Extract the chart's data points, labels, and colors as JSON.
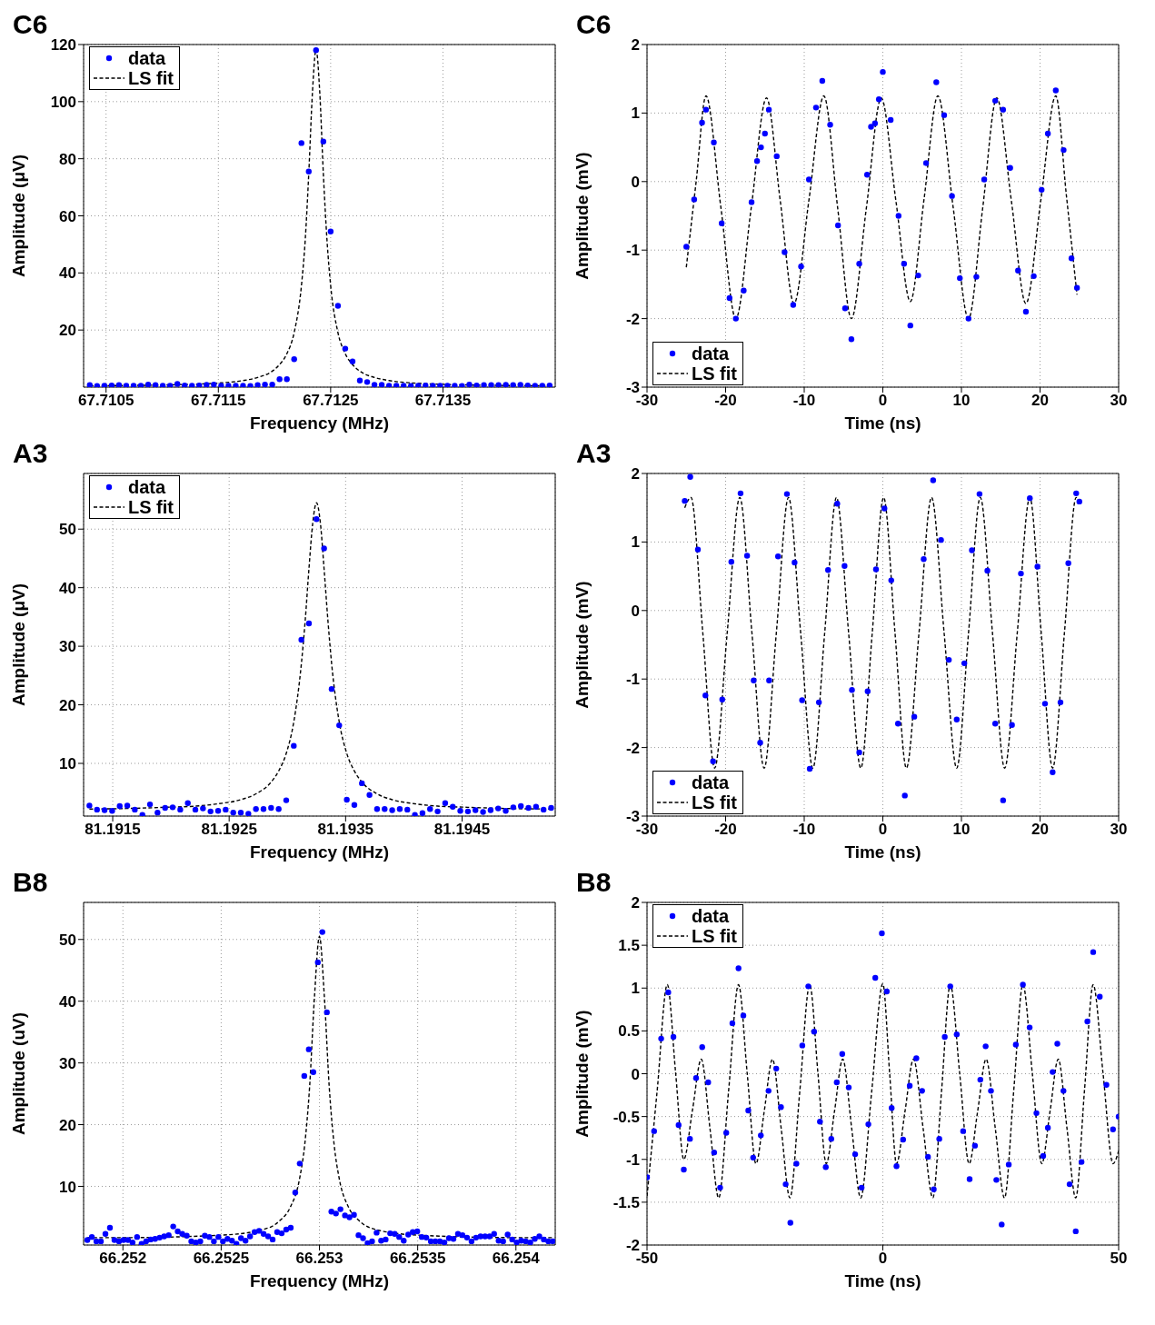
{
  "chart_data": [
    {
      "type": "scatter",
      "title": "C6",
      "xlabel": "Frequency (MHz)",
      "ylabel": "Amplitude (μV)",
      "xlim": [
        67.7103,
        67.7145
      ],
      "xticks": [
        67.7105,
        67.7115,
        67.7125,
        67.7135
      ],
      "ylim": [
        0,
        120
      ],
      "yticks": [
        20,
        40,
        60,
        80,
        100,
        120
      ],
      "grid": true,
      "legend": "top left",
      "series": [
        {
          "name": "data",
          "color": "#0000ff",
          "marker": "circle",
          "x": [
            67.710355,
            67.71042,
            67.710485,
            67.71055,
            67.710615,
            67.71068,
            67.710745,
            67.71081,
            67.710875,
            67.71094,
            67.711005,
            67.71107,
            67.711135,
            67.7112,
            67.711265,
            67.71133,
            67.711395,
            67.71146,
            67.711525,
            67.71159,
            67.711655,
            67.71172,
            67.711785,
            67.71185,
            67.711915,
            67.71198,
            67.712045,
            67.71211,
            67.712175,
            67.71224,
            67.712305,
            67.71237,
            67.712435,
            67.7125,
            67.712565,
            67.71263,
            67.712695,
            67.71276,
            67.712825,
            67.71289,
            67.712955,
            67.71302,
            67.713085,
            67.71315,
            67.713215,
            67.71328,
            67.713345,
            67.71341,
            67.713475,
            67.71354,
            67.713605,
            67.71367,
            67.713735,
            67.7138,
            67.713865,
            67.71393,
            67.713995,
            67.71406,
            67.714125,
            67.71419,
            67.714255,
            67.71432,
            67.714385,
            67.71445
          ],
          "values": [
            0.7,
            0.4,
            0.5,
            0.6,
            0.7,
            0.5,
            0.5,
            0.5,
            0.9,
            0.7,
            0.5,
            0.5,
            1.1,
            0.6,
            0.5,
            0.6,
            0.8,
            0.9,
            0.5,
            0.5,
            0.5,
            0.5,
            0.4,
            0.7,
            0.9,
            0.9,
            2.8,
            2.8,
            9.8,
            85.5,
            75.5,
            118,
            86,
            54.5,
            28.5,
            13.5,
            9,
            2.3,
            1.8,
            0.8,
            0.8,
            0.5,
            0.5,
            0.5,
            0.4,
            0.5,
            0.6,
            0.5,
            0.5,
            0.5,
            0.5,
            0.4,
            0.9,
            0.6,
            0.7,
            0.7,
            0.7,
            0.8,
            0.7,
            0.8,
            0.6,
            0.5,
            0.5,
            0.6
          ]
        },
        {
          "name": "LS fit",
          "type": "line",
          "color": "#000000",
          "marker": "none",
          "line_style": "dashed",
          "x": [
            67.710355,
            67.710745,
            67.71107,
            67.71133,
            67.711525,
            67.71172,
            67.71185,
            67.71198,
            67.712045,
            67.71211,
            67.712175,
            67.71224,
            67.712273,
            67.712305,
            67.712338,
            67.71237,
            67.712403,
            67.712435,
            67.712468,
            67.7125,
            67.712565,
            67.71263,
            67.712695,
            67.71276,
            67.71289,
            67.71302,
            67.713215,
            67.71341,
            67.71367,
            67.713995,
            67.71445
          ],
          "values": [
            0.5,
            0.6,
            0.8,
            1.1,
            1.5,
            2.3,
            3.4,
            5.6,
            7.9,
            11.7,
            19.1,
            35.6,
            51.2,
            74.7,
            103.3,
            118.3,
            103.3,
            74.7,
            51.2,
            35.6,
            19.1,
            11.7,
            7.9,
            5.6,
            3.4,
            2.3,
            1.5,
            1.1,
            0.8,
            0.6,
            0.5
          ]
        }
      ]
    },
    {
      "type": "scatter",
      "title": "C6",
      "xlabel": "Time (ns)",
      "ylabel": "Amplitude (mV)",
      "xlim": [
        -30,
        30
      ],
      "xticks": [
        -30,
        -20,
        -10,
        0,
        10,
        20,
        30
      ],
      "ylim": [
        -3,
        2
      ],
      "yticks": [
        -3,
        -2,
        -1,
        0,
        1,
        2
      ],
      "grid": true,
      "legend": "bottom left",
      "series": [
        {
          "name": "data",
          "color": "#0000ff",
          "marker": "circle",
          "x": [
            -25,
            -24,
            -23,
            -22.5,
            -21.5,
            -20.5,
            -19.5,
            -18.7,
            -17.7,
            -16.7,
            -16,
            -15.5,
            -15,
            -14.5,
            -13.5,
            -12.5,
            -11.4,
            -10.4,
            -9.4,
            -8.5,
            -7.7,
            -6.7,
            -5.7,
            -4.8,
            -4,
            -3,
            -2,
            -1.5,
            -1,
            -0.5,
            0,
            1,
            2,
            2.7,
            3.5,
            4.5,
            5.5,
            6.8,
            7.8,
            8.8,
            9.8,
            10.9,
            11.9,
            12.9,
            14.3,
            15.3,
            16.2,
            17.2,
            18.2,
            19.2,
            20.2,
            21,
            22,
            23,
            24,
            24.7
          ],
          "values": [
            -0.95,
            -0.26,
            0.86,
            1.05,
            0.57,
            -0.61,
            -1.7,
            -2.0,
            -1.59,
            -0.3,
            0.3,
            0.5,
            0.7,
            1.05,
            0.37,
            -1.03,
            -1.8,
            -1.24,
            0.03,
            1.08,
            1.47,
            0.83,
            -0.64,
            -1.85,
            -2.3,
            -1.2,
            0.1,
            0.8,
            0.85,
            1.2,
            1.6,
            0.9,
            -0.5,
            -1.2,
            -2.1,
            -1.37,
            0.27,
            1.45,
            0.97,
            -0.21,
            -1.41,
            -2.0,
            -1.39,
            0.03,
            1.18,
            1.05,
            0.2,
            -1.3,
            -1.9,
            -1.38,
            -0.12,
            0.7,
            1.33,
            0.46,
            -1.12,
            -1.55
          ]
        },
        {
          "name": "LS fit",
          "type": "line",
          "color": "#000000",
          "marker": "none",
          "line_style": "dashed",
          "x": [
            -25,
            -23.75,
            -22.5,
            -20.6,
            -18.7,
            -16.75,
            -14.8,
            -13.05,
            -11.3,
            -9.4,
            -7.5,
            -5.75,
            -4,
            -2.1,
            -0.2,
            1.65,
            3.5,
            5.25,
            7,
            8.95,
            10.9,
            12.7,
            14.5,
            16.35,
            18.2,
            20.1,
            22,
            23.35,
            24.7
          ],
          "values": [
            -1.25,
            0.0,
            1.25,
            -0.38,
            -2.0,
            -0.39,
            1.22,
            -0.28,
            -1.78,
            -0.27,
            1.25,
            -0.38,
            -2.0,
            -0.39,
            1.22,
            -0.27,
            -1.75,
            -0.25,
            1.25,
            -0.38,
            -2.0,
            -0.39,
            1.22,
            -0.28,
            -1.78,
            -0.27,
            1.25,
            -0.2,
            -1.65
          ]
        }
      ]
    },
    {
      "type": "scatter",
      "title": "A3",
      "xlabel": "Frequency (MHz)",
      "ylabel": "Amplitude (μV)",
      "xlim": [
        81.19125,
        81.1953
      ],
      "xticks": [
        81.1915,
        81.1925,
        81.1935,
        81.1945
      ],
      "ylim": [
        1,
        59.5
      ],
      "yticks": [
        10,
        20,
        30,
        40,
        50
      ],
      "grid": true,
      "legend": "top left",
      "series": [
        {
          "name": "data",
          "color": "#0000ff",
          "marker": "circle",
          "x": [
            81.1913,
            81.191365,
            81.19143,
            81.191495,
            81.19156,
            81.191625,
            81.19169,
            81.191755,
            81.19182,
            81.191885,
            81.19195,
            81.192015,
            81.19208,
            81.192145,
            81.19221,
            81.192275,
            81.19234,
            81.192405,
            81.19247,
            81.192535,
            81.1926,
            81.192665,
            81.19273,
            81.192795,
            81.19286,
            81.192925,
            81.19299,
            81.193055,
            81.19312,
            81.193185,
            81.19325,
            81.193315,
            81.19338,
            81.193445,
            81.19351,
            81.193575,
            81.19364,
            81.193705,
            81.19377,
            81.193835,
            81.1939,
            81.193965,
            81.19403,
            81.194095,
            81.19416,
            81.194225,
            81.19429,
            81.194355,
            81.19442,
            81.194485,
            81.19455,
            81.194615,
            81.19468,
            81.194745,
            81.19481,
            81.194875,
            81.19494,
            81.195005,
            81.19507,
            81.195135,
            81.1952,
            81.195265
          ],
          "values": [
            2.8,
            2.1,
            2.0,
            1.9,
            2.7,
            2.8,
            2.1,
            1.2,
            3.0,
            1.6,
            2.4,
            2.5,
            2.1,
            3.2,
            2.1,
            2.3,
            1.8,
            1.9,
            2.1,
            1.6,
            1.6,
            1.4,
            2.2,
            2.2,
            2.4,
            2.2,
            3.7,
            13.0,
            31.1,
            33.9,
            51.7,
            46.7,
            22.7,
            16.5,
            3.8,
            2.9,
            6.6,
            4.6,
            2.2,
            2.2,
            2.0,
            2.2,
            2.1,
            1.2,
            1.5,
            2.2,
            1.8,
            3.2,
            2.6,
            1.9,
            1.8,
            2.0,
            1.7,
            2.0,
            2.3,
            1.9,
            2.5,
            2.7,
            2.4,
            2.6,
            2.1,
            2.4
          ]
        },
        {
          "name": "LS fit",
          "type": "line",
          "color": "#000000",
          "marker": "none",
          "line_style": "dashed",
          "x": [
            81.1913,
            81.191625,
            81.19195,
            81.19221,
            81.192405,
            81.1926,
            81.19273,
            81.19286,
            81.192925,
            81.19299,
            81.193055,
            81.19312,
            81.193153,
            81.193185,
            81.193218,
            81.19325,
            81.193283,
            81.193315,
            81.193348,
            81.19338,
            81.193445,
            81.19351,
            81.193575,
            81.19364,
            81.19377,
            81.1939,
            81.194095,
            81.19429,
            81.19455,
            81.194875,
            81.195265
          ],
          "values": [
            2.2,
            2.3,
            2.5,
            2.7,
            3.1,
            3.8,
            4.8,
            6.8,
            8.7,
            11.7,
            17.1,
            27.0,
            34.4,
            43.2,
            51.1,
            54.5,
            51.1,
            43.2,
            34.4,
            27.0,
            17.1,
            11.7,
            8.7,
            6.8,
            4.8,
            3.8,
            3.1,
            2.7,
            2.5,
            2.3,
            2.2
          ]
        }
      ]
    },
    {
      "type": "scatter",
      "title": "A3",
      "xlabel": "Time (ns)",
      "ylabel": "Amplitude (mV)",
      "xlim": [
        -30,
        30
      ],
      "xticks": [
        -30,
        -20,
        -10,
        0,
        10,
        20,
        30
      ],
      "ylim": [
        -3,
        2
      ],
      "yticks": [
        -3,
        -2,
        -1,
        0,
        1,
        2
      ],
      "grid": true,
      "legend": "bottom left",
      "series": [
        {
          "name": "data",
          "color": "#0000ff",
          "marker": "circle",
          "x": [
            -25.2,
            -24.5,
            -23.53,
            -22.57,
            -21.6,
            -20.43,
            -19.27,
            -18.1,
            -17.27,
            -16.43,
            -15.6,
            -14.47,
            -13.33,
            -12.2,
            -11.23,
            -10.27,
            -9.3,
            -8.13,
            -6.97,
            -5.8,
            -4.87,
            -3.93,
            -3.0,
            -1.93,
            -0.87,
            0.2,
            1.07,
            1.93,
            2.8,
            4.0,
            5.2,
            6.4,
            7.4,
            8.4,
            9.4,
            10.37,
            11.33,
            12.3,
            13.3,
            14.3,
            15.3,
            16.43,
            17.57,
            18.7,
            19.67,
            20.63,
            21.6,
            22.6,
            23.6,
            24.6,
            25.0
          ],
          "values": [
            1.6,
            1.95,
            0.89,
            -1.24,
            -2.2,
            -1.3,
            0.71,
            1.71,
            0.8,
            -1.02,
            -1.93,
            -1.02,
            0.79,
            1.7,
            0.7,
            -1.31,
            -2.31,
            -1.34,
            0.59,
            1.56,
            0.65,
            -1.16,
            -2.07,
            -1.18,
            0.6,
            1.49,
            0.44,
            -1.65,
            -2.7,
            -1.55,
            0.75,
            1.9,
            1.03,
            -0.72,
            -1.59,
            -0.77,
            0.88,
            1.7,
            0.58,
            -1.65,
            -2.77,
            -1.67,
            0.54,
            1.64,
            0.64,
            -1.36,
            -2.36,
            -1.34,
            0.69,
            1.71,
            1.59
          ]
        },
        {
          "name": "LS fit",
          "type": "line",
          "color": "#000000",
          "marker": "none",
          "line_style": "dashed",
          "x": [
            -25.2,
            -24.4,
            -22.9,
            -21.4,
            -19.8,
            -18.2,
            -16.65,
            -15.1,
            -13.55,
            -12,
            -10.45,
            -8.9,
            -7.4,
            -5.9,
            -4.35,
            -2.8,
            -1.35,
            0.1,
            1.55,
            3,
            4.6,
            6.2,
            7.8,
            9.4,
            10.9,
            12.4,
            13.95,
            15.5,
            17.1,
            18.7,
            20.15,
            21.6,
            23.1,
            24.6,
            25
          ],
          "values": [
            1.5,
            1.65,
            -0.33,
            -2.3,
            -0.33,
            1.65,
            -0.33,
            -2.3,
            -0.33,
            1.65,
            -0.33,
            -2.3,
            -0.33,
            1.65,
            -0.33,
            -2.3,
            -0.33,
            1.65,
            -0.33,
            -2.3,
            -0.33,
            1.65,
            -0.33,
            -2.3,
            -0.33,
            1.65,
            -0.33,
            -2.3,
            -0.33,
            1.65,
            -0.33,
            -2.3,
            -0.33,
            1.65,
            1.58
          ]
        }
      ]
    },
    {
      "type": "scatter",
      "title": "B8",
      "xlabel": "Frequency (MHz)",
      "ylabel": "Amplitude (uV)",
      "xlim": [
        66.2518,
        66.2542
      ],
      "xticks": [
        66.252,
        66.2525,
        66.253,
        66.2535,
        66.254
      ],
      "ylim": [
        0.5,
        56
      ],
      "yticks": [
        10,
        20,
        30,
        40,
        50
      ],
      "grid": true,
      "series": [
        {
          "color": "#0000ff",
          "marker": "circle",
          "x": [
            66.251819,
            66.251842,
            66.251865,
            66.251888,
            66.251911,
            66.251934,
            66.251957,
            66.25198,
            66.252003,
            66.252026,
            66.252049,
            66.252072,
            66.252095,
            66.252118,
            66.252141,
            66.252164,
            66.252187,
            66.25221,
            66.252233,
            66.252256,
            66.252279,
            66.252302,
            66.252325,
            66.252348,
            66.252371,
            66.252394,
            66.252417,
            66.25244,
            66.252463,
            66.252486,
            66.252509,
            66.252532,
            66.252555,
            66.252578,
            66.252601,
            66.252624,
            66.252647,
            66.25267,
            66.252693,
            66.252716,
            66.252739,
            66.252762,
            66.252785,
            66.252808,
            66.252831,
            66.252854,
            66.252877,
            66.2529,
            66.252923,
            66.252946,
            66.252969,
            66.252992,
            66.253015,
            66.253038,
            66.253061,
            66.253084,
            66.253107,
            66.25313,
            66.253153,
            66.253176,
            66.253199,
            66.253222,
            66.253245,
            66.253268,
            66.253291,
            66.253314,
            66.253337,
            66.25336,
            66.253383,
            66.253406,
            66.253429,
            66.253452,
            66.253475,
            66.253498,
            66.253521,
            66.253544,
            66.253567,
            66.25359,
            66.253613,
            66.253636,
            66.253659,
            66.253682,
            66.253705,
            66.253728,
            66.253751,
            66.253774,
            66.253797,
            66.25382,
            66.253843,
            66.253866,
            66.253889,
            66.253912,
            66.253935,
            66.253958,
            66.253981,
            66.254004,
            66.254027,
            66.25405,
            66.254073,
            66.254096,
            66.254119,
            66.254142,
            66.254165,
            66.254188
          ],
          "values": [
            1.3,
            1.8,
            1.1,
            1.1,
            2.3,
            3.3,
            1.3,
            1.1,
            1.3,
            1.3,
            0.9,
            1.8,
            0.7,
            1.1,
            1.4,
            1.5,
            1.7,
            1.9,
            2.1,
            3.5,
            2.7,
            2.3,
            2.0,
            1.1,
            0.9,
            1.1,
            2.0,
            1.8,
            1.1,
            1.8,
            1.1,
            1.5,
            1.2,
            0.7,
            1.6,
            1.2,
            1.9,
            2.6,
            2.8,
            2.3,
            1.9,
            1.4,
            2.6,
            2.4,
            3.0,
            3.3,
            9.0,
            13.7,
            27.9,
            32.2,
            28.5,
            46.3,
            51.2,
            38.2,
            5.9,
            5.6,
            6.3,
            5.3,
            5.0,
            5.4,
            2.1,
            1.6,
            0.8,
            1.1,
            2.5,
            1.2,
            1.4,
            2.4,
            2.3,
            1.8,
            1.2,
            2.2,
            2.6,
            2.7,
            1.8,
            1.7,
            1.1,
            1.1,
            1.1,
            0.9,
            1.6,
            1.5,
            2.3,
            2.1,
            1.7,
            1.1,
            1.7,
            1.9,
            1.9,
            1.9,
            2.3,
            1.2,
            1.1,
            2.2,
            1.4,
            0.9,
            1.2,
            1.1,
            0.9,
            1.5,
            1.9,
            1.4,
            1.1,
            1.1
          ]
        },
        {
          "type": "line",
          "color": "#000000",
          "marker": "none",
          "line_style": "dashed",
          "x": [
            66.25182,
            66.252,
            66.2525,
            66.2527,
            66.2528,
            66.25285,
            66.2529,
            66.252925,
            66.25295,
            66.252975,
            66.253,
            66.253025,
            66.25305,
            66.253075,
            66.2531,
            66.25315,
            66.2532,
            66.2533,
            66.2535,
            66.254,
            66.25419
          ],
          "values": [
            1.7,
            1.7,
            2.1,
            2.9,
            4.5,
            6.5,
            11.4,
            16.7,
            26.1,
            40.8,
            50.5,
            40.8,
            26.1,
            16.7,
            11.4,
            6.5,
            4.5,
            2.9,
            2.1,
            1.7,
            1.7
          ]
        }
      ]
    },
    {
      "type": "scatter",
      "title": "B8",
      "xlabel": "Time (ns)",
      "ylabel": "Amplitude (mV)",
      "xlim": [
        -50,
        50
      ],
      "xticks": [
        -50,
        0,
        50
      ],
      "ylim": [
        -2,
        2
      ],
      "yticks": [
        -2,
        -1.5,
        -1,
        -0.5,
        0,
        0.5,
        1,
        1.5,
        2
      ],
      "grid": true,
      "legend": "top left",
      "series": [
        {
          "name": "data",
          "color": "#0000ff",
          "marker": "circle",
          "x": [
            -50,
            -48.5,
            -47,
            -45.5,
            -44.4,
            -43.3,
            -42.2,
            -40.9,
            -39.6,
            -38.3,
            -37.03,
            -35.77,
            -34.5,
            -33.2,
            -31.9,
            -30.6,
            -29.57,
            -28.53,
            -27.5,
            -25.87,
            -24.23,
            -22.6,
            -21.6,
            -20.6,
            -19.6,
            -18.33,
            -17.07,
            -15.8,
            -14.57,
            -13.33,
            -12.1,
            -10.93,
            -9.77,
            -8.6,
            -7.23,
            -5.87,
            -4.5,
            -3.07,
            -1.6,
            -0.2,
            0.83,
            1.87,
            2.9,
            4.3,
            5.7,
            7.1,
            8.33,
            9.57,
            10.8,
            11.97,
            13.13,
            14.3,
            15.67,
            17.03,
            18.4,
            19.53,
            20.67,
            21.8,
            22.93,
            24.07,
            25.2,
            26.7,
            28.2,
            29.7,
            31.13,
            32.57,
            34,
            35,
            36,
            37,
            38.3,
            39.6,
            40.9,
            42.13,
            43.37,
            44.6,
            46,
            47.4,
            48.8,
            50
          ],
          "values": [
            -1.21,
            -0.67,
            0.41,
            0.95,
            0.43,
            -0.6,
            -1.12,
            -0.76,
            -0.05,
            0.31,
            -0.1,
            -0.92,
            -1.33,
            -0.69,
            0.59,
            1.23,
            0.68,
            -0.43,
            -0.98,
            -0.72,
            -0.2,
            0.06,
            -0.39,
            -1.29,
            -1.74,
            -1.05,
            0.33,
            1.02,
            0.49,
            -0.56,
            -1.09,
            -0.76,
            -0.1,
            0.23,
            -0.16,
            -0.94,
            -1.33,
            -0.59,
            1.12,
            1.64,
            0.96,
            -0.4,
            -1.08,
            -0.77,
            -0.14,
            0.18,
            -0.2,
            -0.97,
            -1.35,
            -0.76,
            0.43,
            1.02,
            0.46,
            -0.67,
            -1.23,
            -0.84,
            -0.07,
            0.32,
            -0.2,
            -1.24,
            -1.76,
            -1.06,
            0.34,
            1.04,
            0.54,
            -0.46,
            -0.96,
            -0.63,
            0.02,
            0.35,
            -0.2,
            -1.29,
            -1.84,
            -1.03,
            0.61,
            1.42,
            0.9,
            -0.13,
            -0.65,
            -0.5
          ]
        },
        {
          "name": "LS fit",
          "type": "line",
          "color": "#000000",
          "marker": "none",
          "line_style": "dashed",
          "x": [
            -50,
            -47.85,
            -45.7,
            -43.95,
            -42.2,
            -40.35,
            -38.5,
            -36.65,
            -34.8,
            -32.7,
            -30.6,
            -28.75,
            -26.9,
            -25.15,
            -23.4,
            -21.55,
            -19.7,
            -17.6,
            -15.5,
            -13.75,
            -12,
            -10.25,
            -8.5,
            -6.6,
            -4.7,
            -2.35,
            0,
            1.45,
            2.9,
            4.7,
            6.5,
            8.55,
            10.6,
            12.45,
            14.3,
            16.3,
            18.3,
            20.1,
            21.9,
            23.85,
            25.8,
            27.75,
            29.7,
            31.7,
            33.7,
            35.45,
            37.2,
            39.05,
            40.9,
            42.75,
            44.6,
            46.7,
            48.8,
            50
          ],
          "values": [
            -1.43,
            -0.2,
            1.04,
            0.02,
            -1.0,
            -0.42,
            0.17,
            -0.64,
            -1.45,
            -0.2,
            1.04,
            0.0,
            -1.05,
            -0.44,
            0.17,
            -0.64,
            -1.45,
            -0.2,
            1.04,
            0.0,
            -1.05,
            -0.44,
            0.17,
            -0.64,
            -1.45,
            -0.2,
            1.05,
            0.0,
            -1.05,
            -0.44,
            0.17,
            -0.64,
            -1.45,
            -0.2,
            1.04,
            0.0,
            -1.05,
            -0.44,
            0.17,
            -0.64,
            -1.45,
            -0.2,
            1.04,
            0.0,
            -1.05,
            -0.44,
            0.17,
            -0.64,
            -1.45,
            -0.2,
            1.04,
            0.0,
            -1.05,
            -0.9
          ]
        }
      ]
    }
  ]
}
